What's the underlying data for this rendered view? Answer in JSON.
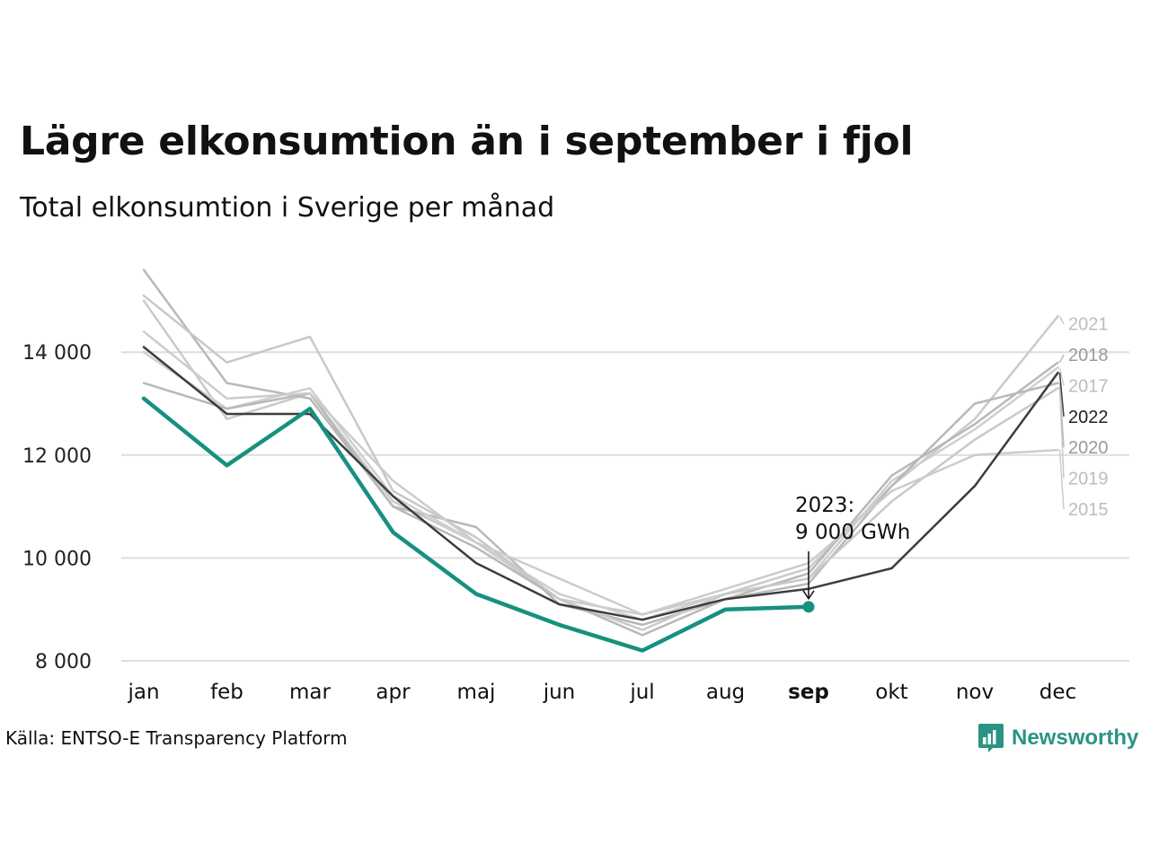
{
  "header": {
    "title": "Lägre elkonsumtion än i september i fjol",
    "subtitle": "Total elkonsumtion i Sverige per månad"
  },
  "footer": {
    "source": "Källa: ENTSO-E Transparency Platform",
    "brand": "Newsworthy",
    "brand_icon": "newsworthy-logo-icon"
  },
  "colors": {
    "highlight": "#16917f",
    "current_reference": "#3d3d3d",
    "grid": "#dedede"
  },
  "chart_data": {
    "type": "line",
    "title": "Lägre elkonsumtion än i september i fjol",
    "subtitle": "Total elkonsumtion i Sverige per månad",
    "xlabel": "",
    "ylabel": "",
    "categories": [
      "jan",
      "feb",
      "mar",
      "apr",
      "maj",
      "jun",
      "jul",
      "aug",
      "sep",
      "okt",
      "nov",
      "dec"
    ],
    "highlight_category": "sep",
    "ylim": [
      7800,
      15800
    ],
    "yticks": [
      8000,
      10000,
      12000,
      14000
    ],
    "ytick_labels": [
      "8 000",
      "10 000",
      "12 000",
      "14 000"
    ],
    "grid": true,
    "legend": "direct labels at right end of lines",
    "series": [
      {
        "name": "2021",
        "color": "#cacaca",
        "label_color": "#bdbdbd",
        "label_y": 14550,
        "values": [
          15000,
          12700,
          13200,
          11100,
          10300,
          9200,
          8900,
          9300,
          9800,
          11400,
          12700,
          14700
        ]
      },
      {
        "name": "2018",
        "color": "#b8b8b8",
        "label_color": "#9a9a9a",
        "label_y": 13950,
        "values": [
          15600,
          13400,
          13100,
          11000,
          10600,
          9100,
          8700,
          9200,
          9700,
          11600,
          12600,
          13800
        ]
      },
      {
        "name": "2017",
        "color": "#cfcfcf",
        "label_color": "#bdbdbd",
        "label_y": 13350,
        "values": [
          14000,
          12900,
          13300,
          11200,
          10300,
          9300,
          8800,
          9300,
          9600,
          11500,
          12500,
          13700
        ]
      },
      {
        "name": "2022",
        "color": "#3d3d3d",
        "label_color": "#222222",
        "label_y": 12750,
        "values": [
          14100,
          12800,
          12800,
          11200,
          9900,
          9100,
          8800,
          9200,
          9400,
          9800,
          11400,
          13600
        ]
      },
      {
        "name": "2020",
        "color": "#b8b8b8",
        "label_color": "#9a9a9a",
        "label_y": 12150,
        "values": [
          13400,
          12900,
          13200,
          11000,
          10200,
          9200,
          8500,
          9200,
          9500,
          11400,
          13000,
          13400
        ]
      },
      {
        "name": "2019",
        "color": "#c8c8c8",
        "label_color": "#bdbdbd",
        "label_y": 11550,
        "values": [
          15100,
          13800,
          14300,
          11300,
          10400,
          9200,
          8600,
          9300,
          9600,
          11100,
          12300,
          13300
        ]
      },
      {
        "name": "2015",
        "color": "#cccccc",
        "label_color": "#bdbdbd",
        "label_y": 10950,
        "values": [
          14400,
          13100,
          13200,
          11500,
          10300,
          9600,
          8900,
          9400,
          9900,
          11300,
          12000,
          12100
        ]
      },
      {
        "name": "2023",
        "color": "#16917f",
        "highlight": true,
        "values": [
          13100,
          11800,
          12900,
          10500,
          9300,
          8700,
          8200,
          9000,
          9050,
          null,
          null,
          null
        ]
      }
    ],
    "annotations": [
      {
        "text_line1": "2023:",
        "text_line2": "9 000 GWh",
        "series": "2023",
        "category": "sep",
        "value": 9050
      }
    ]
  }
}
